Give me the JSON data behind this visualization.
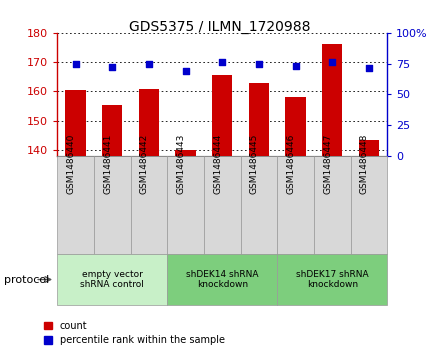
{
  "title": "GDS5375 / ILMN_1720988",
  "samples": [
    "GSM1486440",
    "GSM1486441",
    "GSM1486442",
    "GSM1486443",
    "GSM1486444",
    "GSM1486445",
    "GSM1486446",
    "GSM1486447",
    "GSM1486448"
  ],
  "counts": [
    160.5,
    155.5,
    161.0,
    140.2,
    165.5,
    163.0,
    158.0,
    176.0,
    143.5
  ],
  "percentiles": [
    75,
    72,
    75,
    69,
    76,
    75,
    73,
    76,
    71
  ],
  "ylim_left": [
    138,
    180
  ],
  "ylim_right": [
    0,
    100
  ],
  "yticks_left": [
    140,
    150,
    160,
    170,
    180
  ],
  "yticks_right": [
    0,
    25,
    50,
    75,
    100
  ],
  "groups": [
    {
      "label": "empty vector\nshRNA control",
      "start": 0,
      "end": 3,
      "color": "#c8f0c8"
    },
    {
      "label": "shDEK14 shRNA\nknockdown",
      "start": 3,
      "end": 6,
      "color": "#7dce7d"
    },
    {
      "label": "shDEK17 shRNA\nknockdown",
      "start": 6,
      "end": 9,
      "color": "#7dce7d"
    }
  ],
  "bar_color": "#cc0000",
  "dot_color": "#0000cc",
  "bar_width": 0.55,
  "background_color": "#ffffff",
  "legend_count_color": "#cc0000",
  "legend_pct_color": "#0000cc",
  "grid_style": "dotted",
  "protocol_label": "protocol",
  "tick_color_left": "#cc0000",
  "tick_color_right": "#0000cc",
  "sample_box_color": "#d8d8d8",
  "title_fontsize": 10,
  "axis_fontsize": 8,
  "label_fontsize": 6.5,
  "legend_fontsize": 7
}
